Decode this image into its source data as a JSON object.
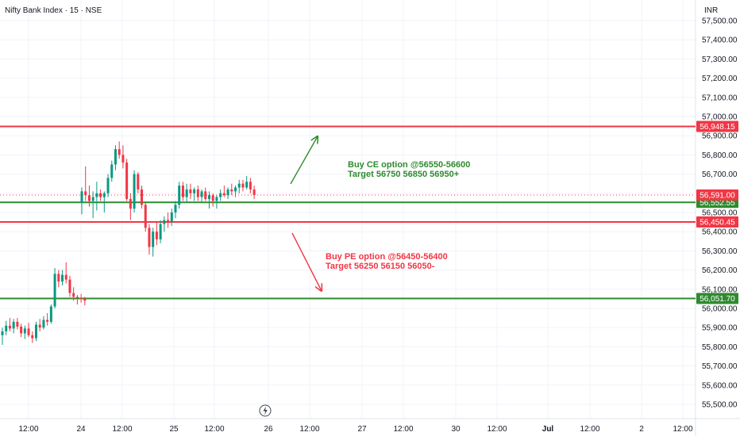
{
  "header": {
    "title": "Nifty Bank Index · 15 · NSE",
    "currency": "INR"
  },
  "colors": {
    "up": "#089981",
    "down": "#f23645",
    "resistance_line": "#f23645",
    "support_line": "#2e8b2e",
    "annotation_green": "#2e8b2e",
    "annotation_red": "#f23645",
    "last_price_line": "#f23645"
  },
  "annotations": {
    "buy_ce_line1": "Buy CE option @56550-56600",
    "buy_ce_line2": "Target 56750 56850 56950+",
    "buy_pe_line1": "Buy PE option @56450-56400",
    "buy_pe_line2": "Target 56250 56150 56050-"
  },
  "chart_data": {
    "type": "candlestick",
    "title": "Nifty Bank Index · 15 · NSE",
    "currency": "INR",
    "y_ticks": [
      57500,
      57400,
      57300,
      57200,
      57100,
      57000,
      56900,
      56800,
      56700,
      56600,
      56500,
      56400,
      56300,
      56200,
      56100,
      56000,
      55900,
      55800,
      55700,
      55600,
      55500
    ],
    "y_tick_labels": [
      "57,500.00",
      "57,400.00",
      "57,300.00",
      "57,200.00",
      "57,100.00",
      "57,000.00",
      "56,900.00",
      "56,800.00",
      "56,700.00",
      "56,600.00",
      "56,500.00",
      "56,400.00",
      "56,300.00",
      "56,200.00",
      "56,100.00",
      "56,000.00",
      "55,900.00",
      "55,800.00",
      "55,700.00",
      "55,600.00",
      "55,500.00"
    ],
    "x_ticks": [
      "12:00",
      "24",
      "12:00",
      "25",
      "12:00",
      "26",
      "12:00",
      "27",
      "12:00",
      "30",
      "12:00",
      "Jul",
      "12:00",
      "2",
      "12:00"
    ],
    "ylim": [
      55480,
      57530
    ],
    "horizontal_levels": [
      {
        "value": 56948.15,
        "label": "56,948.15",
        "role": "resistance"
      },
      {
        "value": 56552.55,
        "label": "56,552.55",
        "role": "support"
      },
      {
        "value": 56450.45,
        "label": "56,450.45",
        "role": "resistance"
      },
      {
        "value": 56051.7,
        "label": "56,051.70",
        "role": "support"
      }
    ],
    "last_price": {
      "value": 56591.0,
      "label": "56,591.00"
    },
    "candles": [
      {
        "o": 55860,
        "h": 55900,
        "l": 55810,
        "c": 55880
      },
      {
        "o": 55880,
        "h": 55935,
        "l": 55860,
        "c": 55910
      },
      {
        "o": 55910,
        "h": 55950,
        "l": 55880,
        "c": 55895
      },
      {
        "o": 55895,
        "h": 55945,
        "l": 55870,
        "c": 55930
      },
      {
        "o": 55930,
        "h": 55950,
        "l": 55890,
        "c": 55905
      },
      {
        "o": 55905,
        "h": 55920,
        "l": 55850,
        "c": 55870
      },
      {
        "o": 55870,
        "h": 55910,
        "l": 55840,
        "c": 55895
      },
      {
        "o": 55895,
        "h": 55925,
        "l": 55850,
        "c": 55860
      },
      {
        "o": 55860,
        "h": 55880,
        "l": 55820,
        "c": 55845
      },
      {
        "o": 55845,
        "h": 55930,
        "l": 55830,
        "c": 55915
      },
      {
        "o": 55915,
        "h": 55945,
        "l": 55880,
        "c": 55900
      },
      {
        "o": 55900,
        "h": 55960,
        "l": 55890,
        "c": 55940
      },
      {
        "o": 55940,
        "h": 55975,
        "l": 55910,
        "c": 55930
      },
      {
        "o": 55930,
        "h": 56020,
        "l": 55920,
        "c": 56010
      },
      {
        "o": 56010,
        "h": 56210,
        "l": 56000,
        "c": 56180
      },
      {
        "o": 56180,
        "h": 56200,
        "l": 56110,
        "c": 56140
      },
      {
        "o": 56140,
        "h": 56200,
        "l": 56120,
        "c": 56175
      },
      {
        "o": 56175,
        "h": 56240,
        "l": 56130,
        "c": 56150
      },
      {
        "o": 56150,
        "h": 56170,
        "l": 56060,
        "c": 56080
      },
      {
        "o": 56080,
        "h": 56110,
        "l": 56040,
        "c": 56060
      },
      {
        "o": 56060,
        "h": 56070,
        "l": 56020,
        "c": 56055
      },
      {
        "o": 56055,
        "h": 56075,
        "l": 56030,
        "c": 56050
      },
      {
        "o": 56050,
        "h": 56060,
        "l": 56015,
        "c": 56040
      },
      {
        "o": 56550,
        "h": 56630,
        "l": 56490,
        "c": 56610
      },
      {
        "o": 56610,
        "h": 56740,
        "l": 56560,
        "c": 56590
      },
      {
        "o": 56590,
        "h": 56640,
        "l": 56530,
        "c": 56560
      },
      {
        "o": 56560,
        "h": 56610,
        "l": 56470,
        "c": 56580
      },
      {
        "o": 56580,
        "h": 56660,
        "l": 56510,
        "c": 56600
      },
      {
        "o": 56600,
        "h": 56620,
        "l": 56560,
        "c": 56580
      },
      {
        "o": 56580,
        "h": 56610,
        "l": 56500,
        "c": 56600
      },
      {
        "o": 56600,
        "h": 56700,
        "l": 56580,
        "c": 56680
      },
      {
        "o": 56680,
        "h": 56770,
        "l": 56660,
        "c": 56750
      },
      {
        "o": 56750,
        "h": 56850,
        "l": 56720,
        "c": 56830
      },
      {
        "o": 56830,
        "h": 56870,
        "l": 56780,
        "c": 56800
      },
      {
        "o": 56800,
        "h": 56850,
        "l": 56730,
        "c": 56760
      },
      {
        "o": 56760,
        "h": 56780,
        "l": 56560,
        "c": 56570
      },
      {
        "o": 56570,
        "h": 56600,
        "l": 56460,
        "c": 56520
      },
      {
        "o": 56520,
        "h": 56720,
        "l": 56500,
        "c": 56700
      },
      {
        "o": 56700,
        "h": 56710,
        "l": 56600,
        "c": 56620
      },
      {
        "o": 56620,
        "h": 56640,
        "l": 56520,
        "c": 56540
      },
      {
        "o": 56540,
        "h": 56550,
        "l": 56400,
        "c": 56420
      },
      {
        "o": 56420,
        "h": 56440,
        "l": 56280,
        "c": 56320
      },
      {
        "o": 56320,
        "h": 56420,
        "l": 56270,
        "c": 56400
      },
      {
        "o": 56400,
        "h": 56450,
        "l": 56330,
        "c": 56360
      },
      {
        "o": 56360,
        "h": 56460,
        "l": 56340,
        "c": 56440
      },
      {
        "o": 56440,
        "h": 56480,
        "l": 56400,
        "c": 56460
      },
      {
        "o": 56460,
        "h": 56500,
        "l": 56420,
        "c": 56450
      },
      {
        "o": 56450,
        "h": 56520,
        "l": 56430,
        "c": 56500
      },
      {
        "o": 56500,
        "h": 56560,
        "l": 56470,
        "c": 56540
      },
      {
        "o": 56540,
        "h": 56660,
        "l": 56520,
        "c": 56640
      },
      {
        "o": 56640,
        "h": 56660,
        "l": 56560,
        "c": 56580
      },
      {
        "o": 56580,
        "h": 56650,
        "l": 56550,
        "c": 56620
      },
      {
        "o": 56620,
        "h": 56650,
        "l": 56570,
        "c": 56600
      },
      {
        "o": 56600,
        "h": 56630,
        "l": 56560,
        "c": 56620
      },
      {
        "o": 56620,
        "h": 56640,
        "l": 56560,
        "c": 56580
      },
      {
        "o": 56580,
        "h": 56620,
        "l": 56550,
        "c": 56610
      },
      {
        "o": 56610,
        "h": 56630,
        "l": 56560,
        "c": 56570
      },
      {
        "o": 56570,
        "h": 56610,
        "l": 56520,
        "c": 56590
      },
      {
        "o": 56590,
        "h": 56600,
        "l": 56530,
        "c": 56560
      },
      {
        "o": 56560,
        "h": 56590,
        "l": 56520,
        "c": 56580
      },
      {
        "o": 56580,
        "h": 56620,
        "l": 56560,
        "c": 56600
      },
      {
        "o": 56600,
        "h": 56640,
        "l": 56580,
        "c": 56590
      },
      {
        "o": 56590,
        "h": 56630,
        "l": 56570,
        "c": 56620
      },
      {
        "o": 56620,
        "h": 56650,
        "l": 56590,
        "c": 56610
      },
      {
        "o": 56610,
        "h": 56640,
        "l": 56580,
        "c": 56630
      },
      {
        "o": 56630,
        "h": 56670,
        "l": 56600,
        "c": 56650
      },
      {
        "o": 56650,
        "h": 56670,
        "l": 56610,
        "c": 56630
      },
      {
        "o": 56630,
        "h": 56690,
        "l": 56620,
        "c": 56660
      },
      {
        "o": 56660,
        "h": 56680,
        "l": 56600,
        "c": 56620
      },
      {
        "o": 56620,
        "h": 56640,
        "l": 56570,
        "c": 56591
      }
    ]
  }
}
